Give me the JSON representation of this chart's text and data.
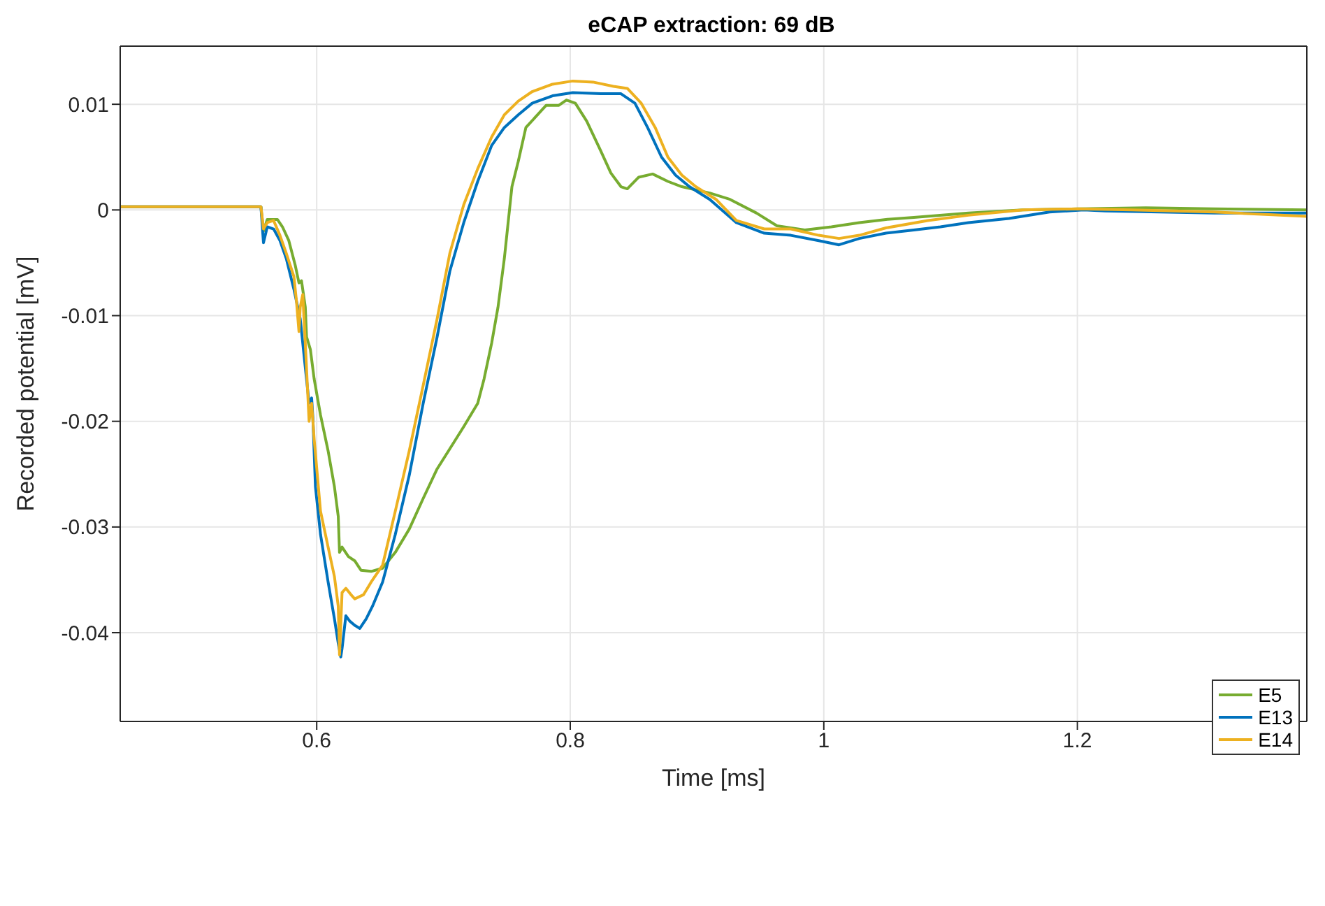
{
  "chart_data": {
    "type": "line",
    "title": "eCAP extraction: 69 dB",
    "xlabel": "Time [ms]",
    "ylabel": "Recorded potential [mV]",
    "xlim": [
      0.445,
      1.381
    ],
    "ylim": [
      -0.0484,
      0.0155
    ],
    "xticks": [
      0.6,
      0.8,
      1,
      1.2
    ],
    "yticks": [
      -0.04,
      -0.03,
      -0.02,
      -0.01,
      0,
      0.01
    ],
    "grid": true,
    "legend": "bottom right",
    "marker": "none",
    "line_style": "solid",
    "series": [
      {
        "name": "E5",
        "color": "#77ac30",
        "x": [
          0.445,
          0.556,
          0.558,
          0.561,
          0.566,
          0.569,
          0.573,
          0.578,
          0.583,
          0.586,
          0.588,
          0.591,
          0.592,
          0.595,
          0.598,
          0.603,
          0.609,
          0.614,
          0.617,
          0.618,
          0.62,
          0.625,
          0.63,
          0.635,
          0.643,
          0.652,
          0.662,
          0.673,
          0.684,
          0.695,
          0.705,
          0.716,
          0.727,
          0.732,
          0.738,
          0.743,
          0.748,
          0.754,
          0.759,
          0.765,
          0.781,
          0.791,
          0.797,
          0.804,
          0.813,
          0.824,
          0.832,
          0.84,
          0.845,
          0.854,
          0.865,
          0.877,
          0.888,
          0.91,
          0.926,
          0.947,
          0.963,
          0.985,
          1.006,
          1.028,
          1.049,
          1.071,
          1.114,
          1.157,
          1.2,
          1.254,
          1.308,
          1.381
        ],
        "values": [
          0.0003,
          0.0003,
          -0.002,
          -0.0009,
          -0.0009,
          -0.0009,
          -0.0016,
          -0.0029,
          -0.0052,
          -0.0069,
          -0.0067,
          -0.0092,
          -0.012,
          -0.0132,
          -0.016,
          -0.0194,
          -0.0228,
          -0.0262,
          -0.029,
          -0.0324,
          -0.0319,
          -0.0328,
          -0.0332,
          -0.0341,
          -0.0342,
          -0.0339,
          -0.0324,
          -0.0302,
          -0.0273,
          -0.0245,
          -0.0226,
          -0.0205,
          -0.0183,
          -0.016,
          -0.0126,
          -0.0092,
          -0.0046,
          0.0022,
          0.0046,
          0.0078,
          0.0099,
          0.0099,
          0.0104,
          0.0101,
          0.0084,
          0.0056,
          0.0035,
          0.0022,
          0.002,
          0.0031,
          0.0034,
          0.0027,
          0.0022,
          0.0016,
          0.001,
          -0.0003,
          -0.0015,
          -0.0019,
          -0.0016,
          -0.0012,
          -0.0009,
          -0.0007,
          -0.0003,
          0,
          0.0001,
          0.0002,
          0.0001,
          0
        ]
      },
      {
        "name": "E13",
        "color": "#0072bd",
        "x": [
          0.445,
          0.556,
          0.558,
          0.561,
          0.566,
          0.571,
          0.576,
          0.582,
          0.587,
          0.591,
          0.594,
          0.596,
          0.597,
          0.599,
          0.603,
          0.609,
          0.614,
          0.617,
          0.619,
          0.62,
          0.623,
          0.626,
          0.63,
          0.634,
          0.639,
          0.644,
          0.652,
          0.662,
          0.673,
          0.684,
          0.695,
          0.705,
          0.716,
          0.727,
          0.738,
          0.748,
          0.759,
          0.77,
          0.786,
          0.802,
          0.824,
          0.84,
          0.851,
          0.861,
          0.872,
          0.883,
          0.894,
          0.91,
          0.931,
          0.953,
          0.974,
          0.996,
          1.012,
          1.028,
          1.049,
          1.071,
          1.092,
          1.114,
          1.146,
          1.178,
          1.205,
          1.222,
          1.265,
          1.308,
          1.381
        ],
        "values": [
          0.0003,
          0.0003,
          -0.0031,
          -0.0016,
          -0.0018,
          -0.0029,
          -0.0046,
          -0.0075,
          -0.0103,
          -0.0149,
          -0.0183,
          -0.0178,
          -0.0197,
          -0.0262,
          -0.0307,
          -0.0352,
          -0.0387,
          -0.041,
          -0.0423,
          -0.0415,
          -0.0384,
          -0.0389,
          -0.0393,
          -0.0396,
          -0.0387,
          -0.0375,
          -0.0352,
          -0.0307,
          -0.0251,
          -0.0183,
          -0.012,
          -0.0058,
          -0.0012,
          0.0027,
          0.0061,
          0.0078,
          0.009,
          0.0101,
          0.0108,
          0.0111,
          0.011,
          0.011,
          0.0101,
          0.0078,
          0.005,
          0.0033,
          0.0022,
          0.001,
          -0.0012,
          -0.0022,
          -0.0024,
          -0.0029,
          -0.0033,
          -0.0027,
          -0.0022,
          -0.0019,
          -0.0016,
          -0.0012,
          -0.0008,
          -0.0002,
          0,
          -0.0001,
          -0.0002,
          -0.0003,
          -0.0003
        ]
      },
      {
        "name": "E14",
        "color": "#edb120",
        "x": [
          0.445,
          0.556,
          0.558,
          0.561,
          0.566,
          0.571,
          0.576,
          0.582,
          0.584,
          0.586,
          0.587,
          0.589,
          0.591,
          0.594,
          0.596,
          0.598,
          0.603,
          0.609,
          0.614,
          0.617,
          0.618,
          0.62,
          0.623,
          0.627,
          0.63,
          0.637,
          0.643,
          0.652,
          0.662,
          0.673,
          0.684,
          0.695,
          0.705,
          0.716,
          0.727,
          0.738,
          0.748,
          0.759,
          0.77,
          0.786,
          0.802,
          0.818,
          0.834,
          0.845,
          0.856,
          0.867,
          0.877,
          0.888,
          0.899,
          0.915,
          0.931,
          0.953,
          0.974,
          0.996,
          1.012,
          1.028,
          1.049,
          1.082,
          1.114,
          1.157,
          1.2,
          1.243,
          1.308,
          1.381
        ],
        "values": [
          0.0003,
          0.0003,
          -0.0018,
          -0.0012,
          -0.001,
          -0.0024,
          -0.0041,
          -0.0063,
          -0.0086,
          -0.0115,
          -0.0092,
          -0.008,
          -0.0126,
          -0.02,
          -0.0183,
          -0.0217,
          -0.0285,
          -0.0319,
          -0.0347,
          -0.0375,
          -0.0421,
          -0.0362,
          -0.0358,
          -0.0364,
          -0.0368,
          -0.0364,
          -0.0352,
          -0.0336,
          -0.0285,
          -0.0228,
          -0.0166,
          -0.0103,
          -0.0041,
          0.0005,
          0.0039,
          0.0069,
          0.009,
          0.0103,
          0.0112,
          0.0119,
          0.0122,
          0.0121,
          0.0117,
          0.0115,
          0.0101,
          0.0078,
          0.005,
          0.0033,
          0.0022,
          0.001,
          -0.001,
          -0.0018,
          -0.0018,
          -0.0024,
          -0.0027,
          -0.0024,
          -0.0017,
          -0.001,
          -0.0005,
          0,
          0.0001,
          0,
          -0.0002,
          -0.0006
        ]
      }
    ]
  }
}
